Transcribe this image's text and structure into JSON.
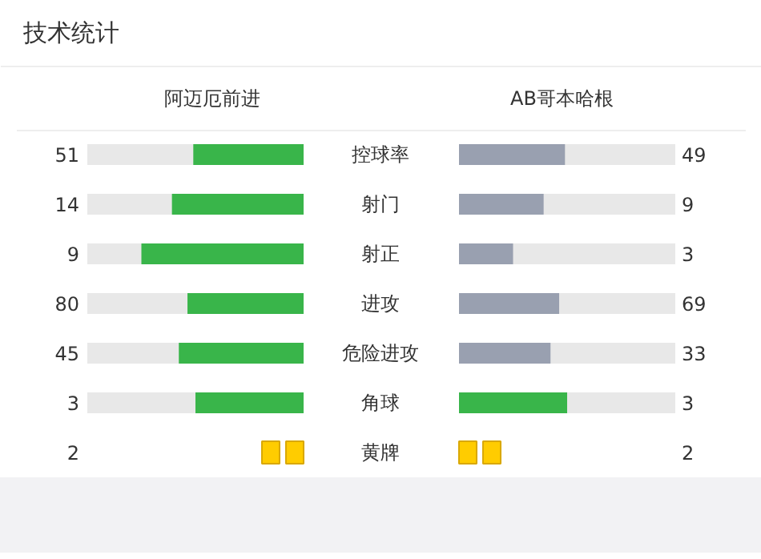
{
  "chart_data": [
    {
      "type": "other",
      "title": "技术统计",
      "categories": [
        "控球率",
        "射门",
        "射正",
        "进攻",
        "危险进攻",
        "角球"
      ],
      "data_labels": true,
      "series": [
        {
          "name": "阿迈厄前进",
          "values": [
            51,
            14,
            9,
            80,
            45,
            3
          ],
          "colors": [
            "#39b54a",
            "#39b54a",
            "#39b54a",
            "#39b54a",
            "#39b54a",
            "#39b54a"
          ]
        },
        {
          "name": "AB哥本哈根",
          "values": [
            49,
            9,
            3,
            69,
            33,
            3
          ],
          "colors": [
            "#99a0b0",
            "#99a0b0",
            "#99a0b0",
            "#99a0b0",
            "#99a0b0",
            "#39b54a"
          ]
        }
      ]
    },
    {
      "type": "other",
      "categories": [
        "黄牌"
      ],
      "data_labels": true,
      "series": [
        {
          "values": [
            2
          ],
          "color": "#ffcc00"
        },
        {
          "values": [
            2
          ],
          "color": "#ffcc00"
        }
      ]
    }
  ]
}
